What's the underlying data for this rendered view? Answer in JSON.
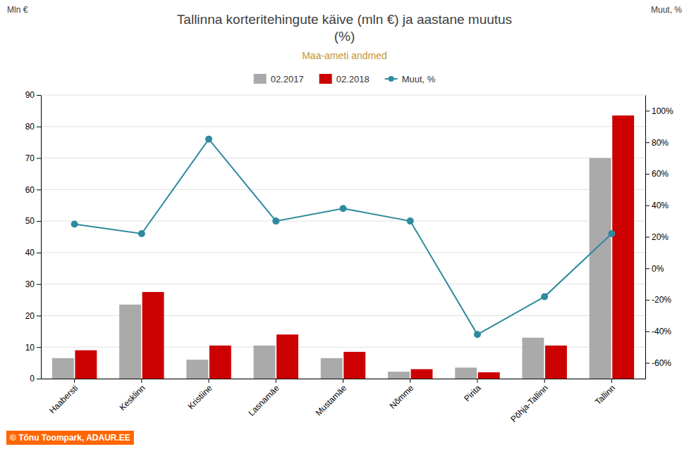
{
  "chart_data": {
    "type": "bar",
    "title": [
      "Tallinna korteritehingute käive (mln €) ja aastane muutus",
      "(%)"
    ],
    "subtitle": "Maa-ameti andmed",
    "y_label": "Mln €",
    "y2_label": "Muut, %",
    "annotations": [
      "© Tõnu Toompark, ADAUR.EE"
    ],
    "categories": [
      "Haabersti",
      "Kesklinn",
      "Kristiine",
      "Lasnamäe",
      "Mustamäe",
      "Nõmme",
      "Pirita",
      "Põhja-Tallinn",
      "Tallinn"
    ],
    "series": [
      {
        "name": "02.2017",
        "type": "bar",
        "color": "#aaaaaa",
        "values": [
          6.5,
          23.5,
          6.0,
          10.5,
          6.5,
          2.2,
          3.5,
          13.0,
          70.0
        ]
      },
      {
        "name": "02.2018",
        "type": "bar",
        "color": "#cc0000",
        "values": [
          9.0,
          27.5,
          10.5,
          14.0,
          8.5,
          3.0,
          2.0,
          10.5,
          83.5
        ]
      },
      {
        "name": "Muut, %",
        "type": "line",
        "color": "#2e8a9e",
        "marker": "circle",
        "axis": "y2",
        "values": [
          28,
          22,
          82,
          30,
          38,
          30,
          -42,
          -18,
          22
        ]
      }
    ],
    "ylim": [
      0,
      90
    ],
    "yticks": [
      0,
      10,
      20,
      30,
      40,
      50,
      60,
      70,
      80,
      90
    ],
    "y2lim": [
      -70,
      110
    ],
    "y2ticks": [
      {
        "value": -60,
        "label": "-60%"
      },
      {
        "value": -40,
        "label": "-40%"
      },
      {
        "value": -20,
        "label": "-20%"
      },
      {
        "value": 0,
        "label": "0%"
      },
      {
        "value": 20,
        "label": "20%"
      },
      {
        "value": 40,
        "label": "40%"
      },
      {
        "value": 60,
        "label": "60%"
      },
      {
        "value": 80,
        "label": "80%"
      },
      {
        "value": 100,
        "label": "100%"
      }
    ],
    "grid": true,
    "legend": "top"
  }
}
